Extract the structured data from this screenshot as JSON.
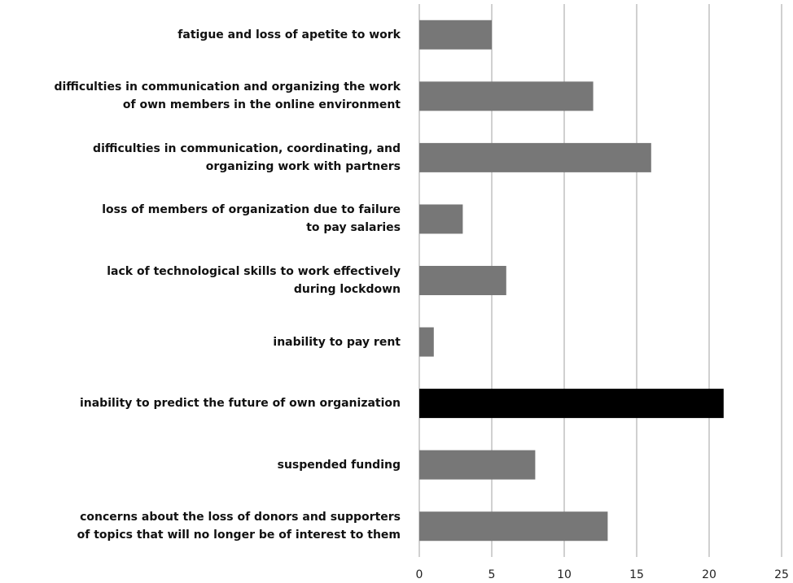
{
  "chart_data": {
    "type": "bar",
    "orientation": "horizontal",
    "categories": [
      "fatigue and loss of apetite to work",
      "difficulties in communication and organizing the work\nof own members in the online environment",
      "difficulties in communication, coordinating, and\norganizing work with partners",
      "loss of members of organization due to failure\nto pay salaries",
      "lack of technological skills to work effectively\nduring lockdown",
      "inability to pay rent",
      "inability to predict the future of own organization",
      "suspended funding",
      "concerns about the loss of donors and supporters\nof topics that will no longer be of interest to them"
    ],
    "values": [
      5,
      12,
      16,
      3,
      6,
      1,
      21,
      8,
      13
    ],
    "colors": [
      "#777777",
      "#777777",
      "#777777",
      "#777777",
      "#777777",
      "#777777",
      "#000000",
      "#777777",
      "#777777"
    ],
    "xlim": [
      0,
      25
    ],
    "xticks": [
      0,
      5,
      10,
      15,
      20,
      25
    ],
    "grid": true
  }
}
